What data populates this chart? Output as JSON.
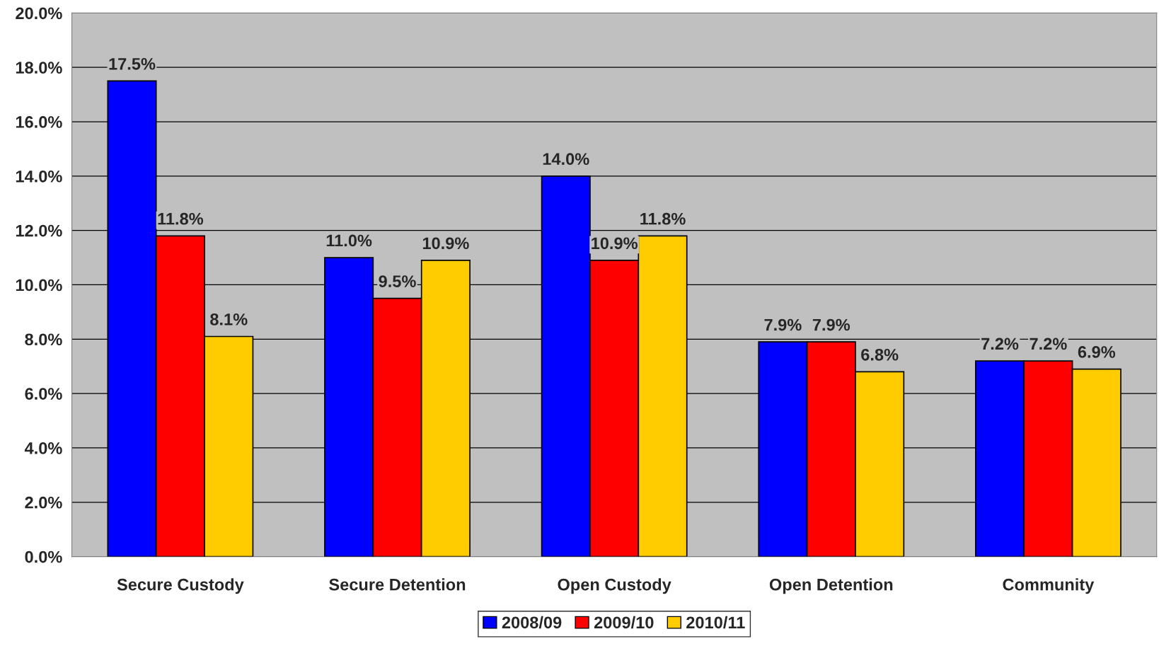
{
  "chart_data": {
    "type": "bar",
    "categories": [
      "Secure Custody",
      "Secure Detention",
      "Open Custody",
      "Open Detention",
      "Community"
    ],
    "series": [
      {
        "name": "2008/09",
        "color": "#0000ff",
        "values": [
          17.5,
          11.0,
          14.0,
          7.9,
          7.2
        ],
        "value_labels": [
          "17.5%",
          "11.0%",
          "14.0%",
          "7.9%",
          "7.2%"
        ]
      },
      {
        "name": "2009/10",
        "color": "#ff0000",
        "values": [
          11.8,
          9.5,
          10.9,
          7.9,
          7.2
        ],
        "value_labels": [
          "11.8%",
          "9.5%",
          "10.9%",
          "7.9%",
          "7.2%"
        ]
      },
      {
        "name": "2010/11",
        "color": "#ffcc00",
        "values": [
          8.1,
          10.9,
          11.8,
          6.8,
          6.9
        ],
        "value_labels": [
          "8.1%",
          "10.9%",
          "11.8%",
          "6.8%",
          "6.9%"
        ]
      }
    ],
    "ylim": [
      0,
      20
    ],
    "yticks": [
      {
        "value": 0,
        "label": "0.0%"
      },
      {
        "value": 2,
        "label": "2.0%"
      },
      {
        "value": 4,
        "label": "4.0%"
      },
      {
        "value": 6,
        "label": "6.0%"
      },
      {
        "value": 8,
        "label": "8.0%"
      },
      {
        "value": 10,
        "label": "10.0%"
      },
      {
        "value": 12,
        "label": "12.0%"
      },
      {
        "value": 14,
        "label": "14.0%"
      },
      {
        "value": 16,
        "label": "16.0%"
      },
      {
        "value": 18,
        "label": "18.0%"
      },
      {
        "value": 20,
        "label": "20.0%"
      }
    ],
    "grid": "y",
    "legend": "bottom"
  }
}
